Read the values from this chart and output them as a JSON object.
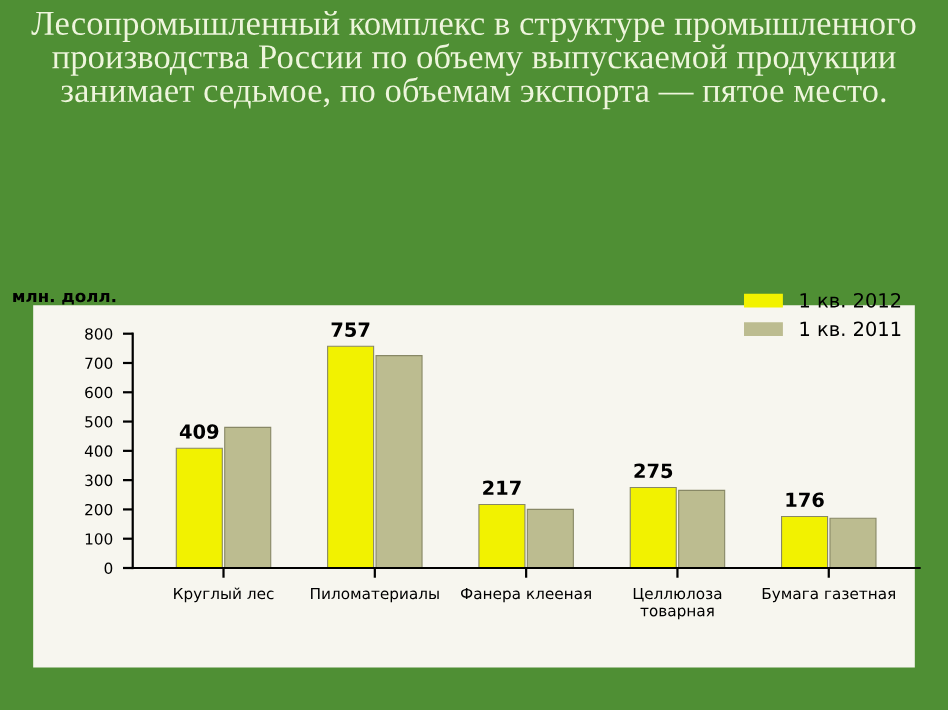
{
  "chart_data": {
    "type": "bar",
    "title": "Лесопромышленный комплекс в структуре промышленного производства России по объему выпускаемой продукции занимает седьмое, по объемам экспорта — пятое место.",
    "ylabel": "млн. долл.",
    "categories": [
      "Круглый лес",
      "Пиломатериалы",
      "Фанера клееная",
      "Целлюлоза\nтоварная",
      "Бумага газетная"
    ],
    "series": [
      {
        "name": "1 кв. 2012",
        "color": "#f2f200",
        "values": [
          409,
          757,
          217,
          275,
          176
        ],
        "value_labels": [
          "409",
          "757",
          "217",
          "275",
          "176"
        ]
      },
      {
        "name": "1 кв. 2011",
        "color": "#bcbc90",
        "values": [
          480,
          725,
          200,
          265,
          170
        ]
      }
    ],
    "ylim": [
      0,
      800
    ],
    "yticks": [
      0,
      100,
      200,
      300,
      400,
      500,
      600,
      700,
      800
    ],
    "grid": false,
    "legend": "top right"
  }
}
